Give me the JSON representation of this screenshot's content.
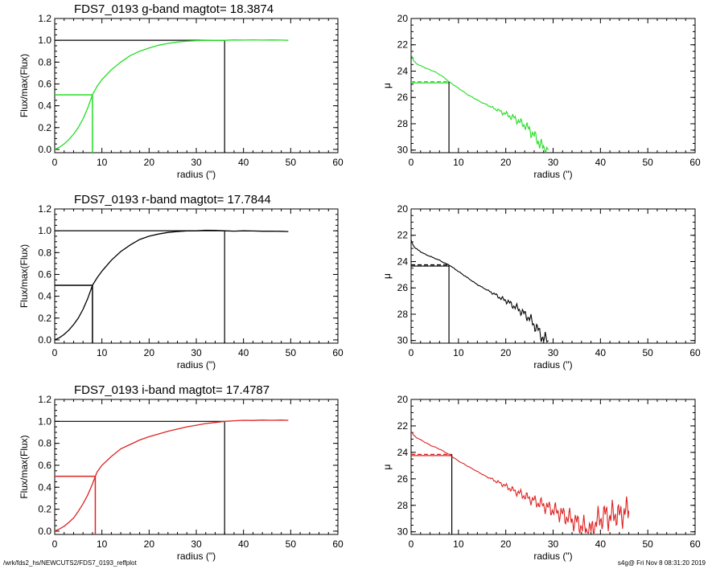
{
  "footer": {
    "left": "/wrk/fds2_hs/NEWCUTS2/FDS7_0193_reffplot",
    "right": "s4g@  Fri Nov  8 08:31:20 2019"
  },
  "chart_data": [
    {
      "type": "line",
      "band": "g",
      "title": "FDS7_0193 g-band  magtot=     18.3874",
      "xlabel": "radius (\")",
      "ylabel": "Flux/max(Flux)",
      "xlim": [
        0,
        60
      ],
      "ylim": [
        -0.03,
        1.2
      ],
      "xticks": [
        0,
        10,
        20,
        30,
        40,
        50,
        60
      ],
      "yticks": [
        0.0,
        0.2,
        0.4,
        0.6,
        0.8,
        1.0,
        1.2
      ],
      "series_color": "#22dd22",
      "curve": [
        [
          0,
          0
        ],
        [
          1,
          0.02
        ],
        [
          2,
          0.05
        ],
        [
          3,
          0.09
        ],
        [
          4,
          0.14
        ],
        [
          5,
          0.2
        ],
        [
          6,
          0.28
        ],
        [
          7,
          0.38
        ],
        [
          8,
          0.5
        ],
        [
          9,
          0.58
        ],
        [
          10,
          0.64
        ],
        [
          12,
          0.73
        ],
        [
          14,
          0.8
        ],
        [
          16,
          0.86
        ],
        [
          18,
          0.9
        ],
        [
          20,
          0.93
        ],
        [
          22,
          0.955
        ],
        [
          24,
          0.972
        ],
        [
          26,
          0.984
        ],
        [
          28,
          0.992
        ],
        [
          30,
          0.997
        ],
        [
          32,
          0.999
        ],
        [
          34,
          1.0
        ],
        [
          36,
          1.0
        ],
        [
          38,
          1.003
        ],
        [
          40,
          1.002
        ],
        [
          42,
          1.004
        ],
        [
          44,
          1.002
        ],
        [
          46,
          1.003
        ],
        [
          48,
          1.002
        ],
        [
          49.5,
          1.0
        ]
      ],
      "half_light_radius": 8.0,
      "total_radius": 36.0
    },
    {
      "type": "line",
      "band": "g",
      "title": "",
      "xlabel": "radius (\")",
      "ylabel": "μ",
      "xlim": [
        0,
        60
      ],
      "ylim": [
        30.2,
        20
      ],
      "xticks": [
        0,
        10,
        20,
        30,
        40,
        50,
        60
      ],
      "yticks": [
        20,
        22,
        24,
        26,
        28,
        30
      ],
      "series_color": "#22dd22",
      "profile": [
        [
          0,
          22.7
        ],
        [
          0.5,
          23.2
        ],
        [
          1,
          23.4
        ],
        [
          2,
          23.6
        ],
        [
          3,
          23.75
        ],
        [
          4,
          23.9
        ],
        [
          5,
          24.05
        ],
        [
          6,
          24.25
        ],
        [
          7,
          24.5
        ],
        [
          8,
          24.8
        ],
        [
          9,
          25.05
        ],
        [
          10,
          25.3
        ],
        [
          11,
          25.55
        ],
        [
          12,
          25.8
        ],
        [
          13,
          26.0
        ],
        [
          14,
          26.2
        ],
        [
          15,
          26.4
        ],
        [
          16,
          26.55
        ],
        [
          17,
          26.75
        ],
        [
          18,
          26.9
        ],
        [
          19,
          27.1
        ],
        [
          20,
          27.25
        ],
        [
          21,
          27.45
        ],
        [
          22,
          27.6
        ],
        [
          23,
          27.9
        ],
        [
          24,
          28.1
        ],
        [
          25,
          28.45
        ],
        [
          26,
          28.9
        ],
        [
          27,
          29.4
        ],
        [
          28,
          29.9
        ],
        [
          29,
          30.0
        ]
      ],
      "reference_mu": 24.8,
      "half_light_radius": 8.0
    },
    {
      "type": "line",
      "band": "r",
      "title": "FDS7_0193 r-band  magtot=     17.7844",
      "xlabel": "radius (\")",
      "ylabel": "Flux/max(Flux)",
      "xlim": [
        0,
        60
      ],
      "ylim": [
        -0.03,
        1.2
      ],
      "xticks": [
        0,
        10,
        20,
        30,
        40,
        50,
        60
      ],
      "yticks": [
        0.0,
        0.2,
        0.4,
        0.6,
        0.8,
        1.0,
        1.2
      ],
      "series_color": "#000000",
      "curve": [
        [
          0,
          0
        ],
        [
          1,
          0.02
        ],
        [
          2,
          0.05
        ],
        [
          3,
          0.09
        ],
        [
          4,
          0.14
        ],
        [
          5,
          0.2
        ],
        [
          6,
          0.28
        ],
        [
          7,
          0.38
        ],
        [
          8,
          0.5
        ],
        [
          9,
          0.57
        ],
        [
          10,
          0.63
        ],
        [
          12,
          0.73
        ],
        [
          14,
          0.81
        ],
        [
          16,
          0.87
        ],
        [
          18,
          0.92
        ],
        [
          20,
          0.95
        ],
        [
          22,
          0.97
        ],
        [
          24,
          0.985
        ],
        [
          26,
          0.993
        ],
        [
          28,
          0.998
        ],
        [
          30,
          1.0
        ],
        [
          32,
          1.005
        ],
        [
          34,
          1.003
        ],
        [
          36,
          1.0
        ],
        [
          38,
          0.997
        ],
        [
          40,
          1.0
        ],
        [
          42,
          0.998
        ],
        [
          44,
          0.996
        ],
        [
          46,
          0.997
        ],
        [
          48,
          0.995
        ],
        [
          49.5,
          0.993
        ]
      ],
      "half_light_radius": 8.0,
      "total_radius": 36.0
    },
    {
      "type": "line",
      "band": "r",
      "title": "",
      "xlabel": "radius (\")",
      "ylabel": "μ",
      "xlim": [
        0,
        60
      ],
      "ylim": [
        30.2,
        20
      ],
      "xticks": [
        0,
        10,
        20,
        30,
        40,
        50,
        60
      ],
      "yticks": [
        20,
        22,
        24,
        26,
        28,
        30
      ],
      "series_color": "#000000",
      "profile": [
        [
          0,
          22.4
        ],
        [
          0.5,
          22.8
        ],
        [
          1,
          23.0
        ],
        [
          2,
          23.25
        ],
        [
          3,
          23.45
        ],
        [
          4,
          23.6
        ],
        [
          5,
          23.75
        ],
        [
          6,
          23.9
        ],
        [
          7,
          24.1
        ],
        [
          8,
          24.25
        ],
        [
          9,
          24.5
        ],
        [
          10,
          24.75
        ],
        [
          11,
          25.0
        ],
        [
          12,
          25.25
        ],
        [
          13,
          25.5
        ],
        [
          14,
          25.75
        ],
        [
          15,
          25.95
        ],
        [
          16,
          26.15
        ],
        [
          17,
          26.35
        ],
        [
          18,
          26.55
        ],
        [
          19,
          26.8
        ],
        [
          20,
          26.95
        ],
        [
          21,
          27.2
        ],
        [
          22,
          27.45
        ],
        [
          23,
          27.7
        ],
        [
          24,
          28.0
        ],
        [
          25,
          28.3
        ],
        [
          26,
          28.8
        ],
        [
          27,
          29.3
        ],
        [
          28,
          29.9
        ],
        [
          29,
          30.0
        ]
      ],
      "reference_mu": 24.25,
      "half_light_radius": 8.0
    },
    {
      "type": "line",
      "band": "i",
      "title": "FDS7_0193 i-band  magtot=     17.4787",
      "xlabel": "radius (\")",
      "ylabel": "Flux/max(Flux)",
      "xlim": [
        0,
        60
      ],
      "ylim": [
        -0.03,
        1.2
      ],
      "xticks": [
        0,
        10,
        20,
        30,
        40,
        50,
        60
      ],
      "yticks": [
        0.0,
        0.2,
        0.4,
        0.6,
        0.8,
        1.0,
        1.2
      ],
      "series_color": "#dd2222",
      "curve": [
        [
          0,
          0
        ],
        [
          1,
          0.02
        ],
        [
          2,
          0.045
        ],
        [
          3,
          0.08
        ],
        [
          4,
          0.12
        ],
        [
          5,
          0.18
        ],
        [
          6,
          0.25
        ],
        [
          7,
          0.33
        ],
        [
          8,
          0.43
        ],
        [
          8.6,
          0.5
        ],
        [
          9,
          0.54
        ],
        [
          10,
          0.6
        ],
        [
          12,
          0.68
        ],
        [
          14,
          0.75
        ],
        [
          16,
          0.79
        ],
        [
          18,
          0.83
        ],
        [
          20,
          0.86
        ],
        [
          22,
          0.885
        ],
        [
          24,
          0.91
        ],
        [
          26,
          0.93
        ],
        [
          28,
          0.95
        ],
        [
          30,
          0.965
        ],
        [
          32,
          0.98
        ],
        [
          34,
          0.99
        ],
        [
          36,
          1.0
        ],
        [
          38,
          1.005
        ],
        [
          40,
          1.01
        ],
        [
          42,
          1.008
        ],
        [
          44,
          1.012
        ],
        [
          46,
          1.01
        ],
        [
          48,
          1.012
        ],
        [
          49.5,
          1.01
        ]
      ],
      "half_light_radius": 8.6,
      "total_radius": 36.0
    },
    {
      "type": "line",
      "band": "i",
      "title": "",
      "xlabel": "radius (\")",
      "ylabel": "μ",
      "xlim": [
        0,
        60
      ],
      "ylim": [
        30.2,
        20
      ],
      "xticks": [
        0,
        10,
        20,
        30,
        40,
        50,
        60
      ],
      "yticks": [
        20,
        22,
        24,
        26,
        28,
        30
      ],
      "series_color": "#dd2222",
      "profile": [
        [
          0,
          22.4
        ],
        [
          0.5,
          22.7
        ],
        [
          1,
          22.85
        ],
        [
          2,
          23.05
        ],
        [
          3,
          23.25
        ],
        [
          4,
          23.45
        ],
        [
          5,
          23.6
        ],
        [
          6,
          23.75
        ],
        [
          7,
          23.95
        ],
        [
          8,
          24.15
        ],
        [
          9,
          24.4
        ],
        [
          10,
          24.65
        ],
        [
          11,
          24.85
        ],
        [
          12,
          25.05
        ],
        [
          13,
          25.25
        ],
        [
          14,
          25.45
        ],
        [
          15,
          25.65
        ],
        [
          16,
          25.85
        ],
        [
          17,
          26.0
        ],
        [
          18,
          26.2
        ],
        [
          19,
          26.35
        ],
        [
          20,
          26.55
        ],
        [
          21,
          26.75
        ],
        [
          22,
          26.95
        ],
        [
          23,
          27.1
        ],
        [
          24,
          27.3
        ],
        [
          25,
          27.5
        ],
        [
          26,
          27.65
        ],
        [
          27,
          27.85
        ],
        [
          28,
          28.0
        ],
        [
          29,
          28.2
        ],
        [
          30,
          28.35
        ],
        [
          31,
          28.5
        ],
        [
          32,
          28.7
        ],
        [
          33,
          28.9
        ],
        [
          34,
          29.1
        ],
        [
          35,
          29.3
        ],
        [
          36,
          29.55
        ],
        [
          37,
          29.8
        ],
        [
          38,
          30.0
        ],
        [
          39,
          29.3
        ],
        [
          40,
          29.0
        ],
        [
          41,
          28.7
        ],
        [
          42,
          28.9
        ],
        [
          43,
          28.6
        ],
        [
          44,
          28.8
        ],
        [
          45,
          28.5
        ],
        [
          46,
          28.4
        ]
      ],
      "reference_mu": 24.15,
      "half_light_radius": 8.6
    }
  ]
}
